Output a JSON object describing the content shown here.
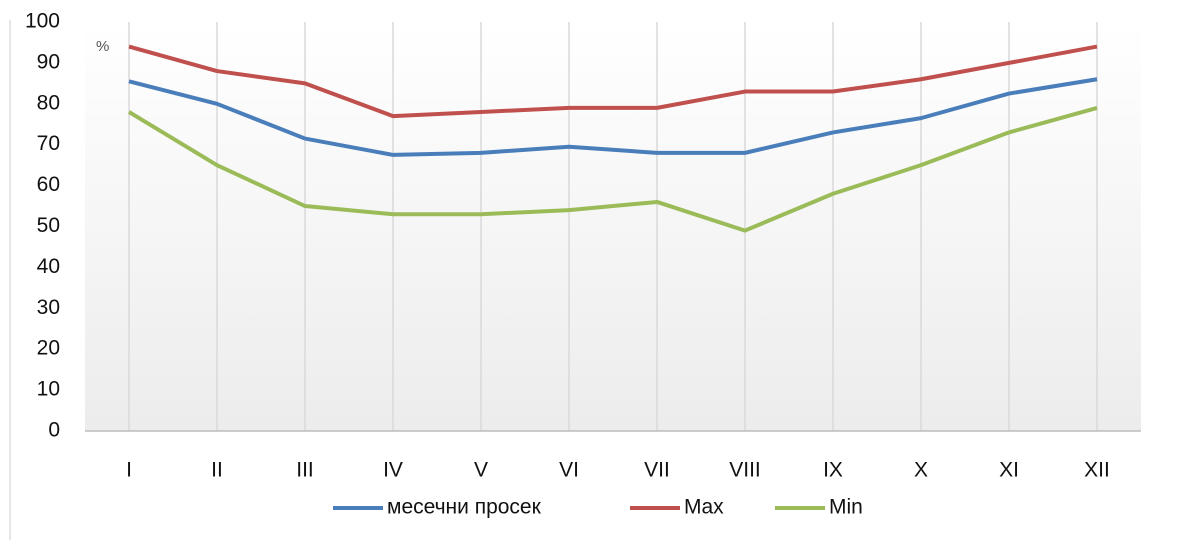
{
  "chart_data": {
    "type": "line",
    "y_unit_label": "%",
    "categories": [
      "I",
      "II",
      "III",
      "IV",
      "V",
      "VI",
      "VII",
      "VIII",
      "IX",
      "X",
      "XI",
      "XII"
    ],
    "series": [
      {
        "name": "месечни просек",
        "color": "#4a7ebb",
        "values": [
          85.5,
          80,
          71.5,
          67.5,
          68,
          69.5,
          68,
          68,
          73,
          76.5,
          82.5,
          86
        ]
      },
      {
        "name": "Max",
        "color": "#c0504d",
        "values": [
          94,
          88,
          85,
          77,
          78,
          79,
          79,
          83,
          83,
          86,
          90,
          94
        ]
      },
      {
        "name": "Min",
        "color": "#9bbb59",
        "values": [
          78,
          65,
          55,
          53,
          53,
          54,
          56,
          49,
          58,
          65,
          73,
          79
        ]
      }
    ],
    "ylim": [
      0,
      100
    ],
    "yticks": [
      0,
      10,
      20,
      30,
      40,
      50,
      60,
      70,
      80,
      90,
      100
    ],
    "category_grid": true,
    "legend": "bottom"
  }
}
